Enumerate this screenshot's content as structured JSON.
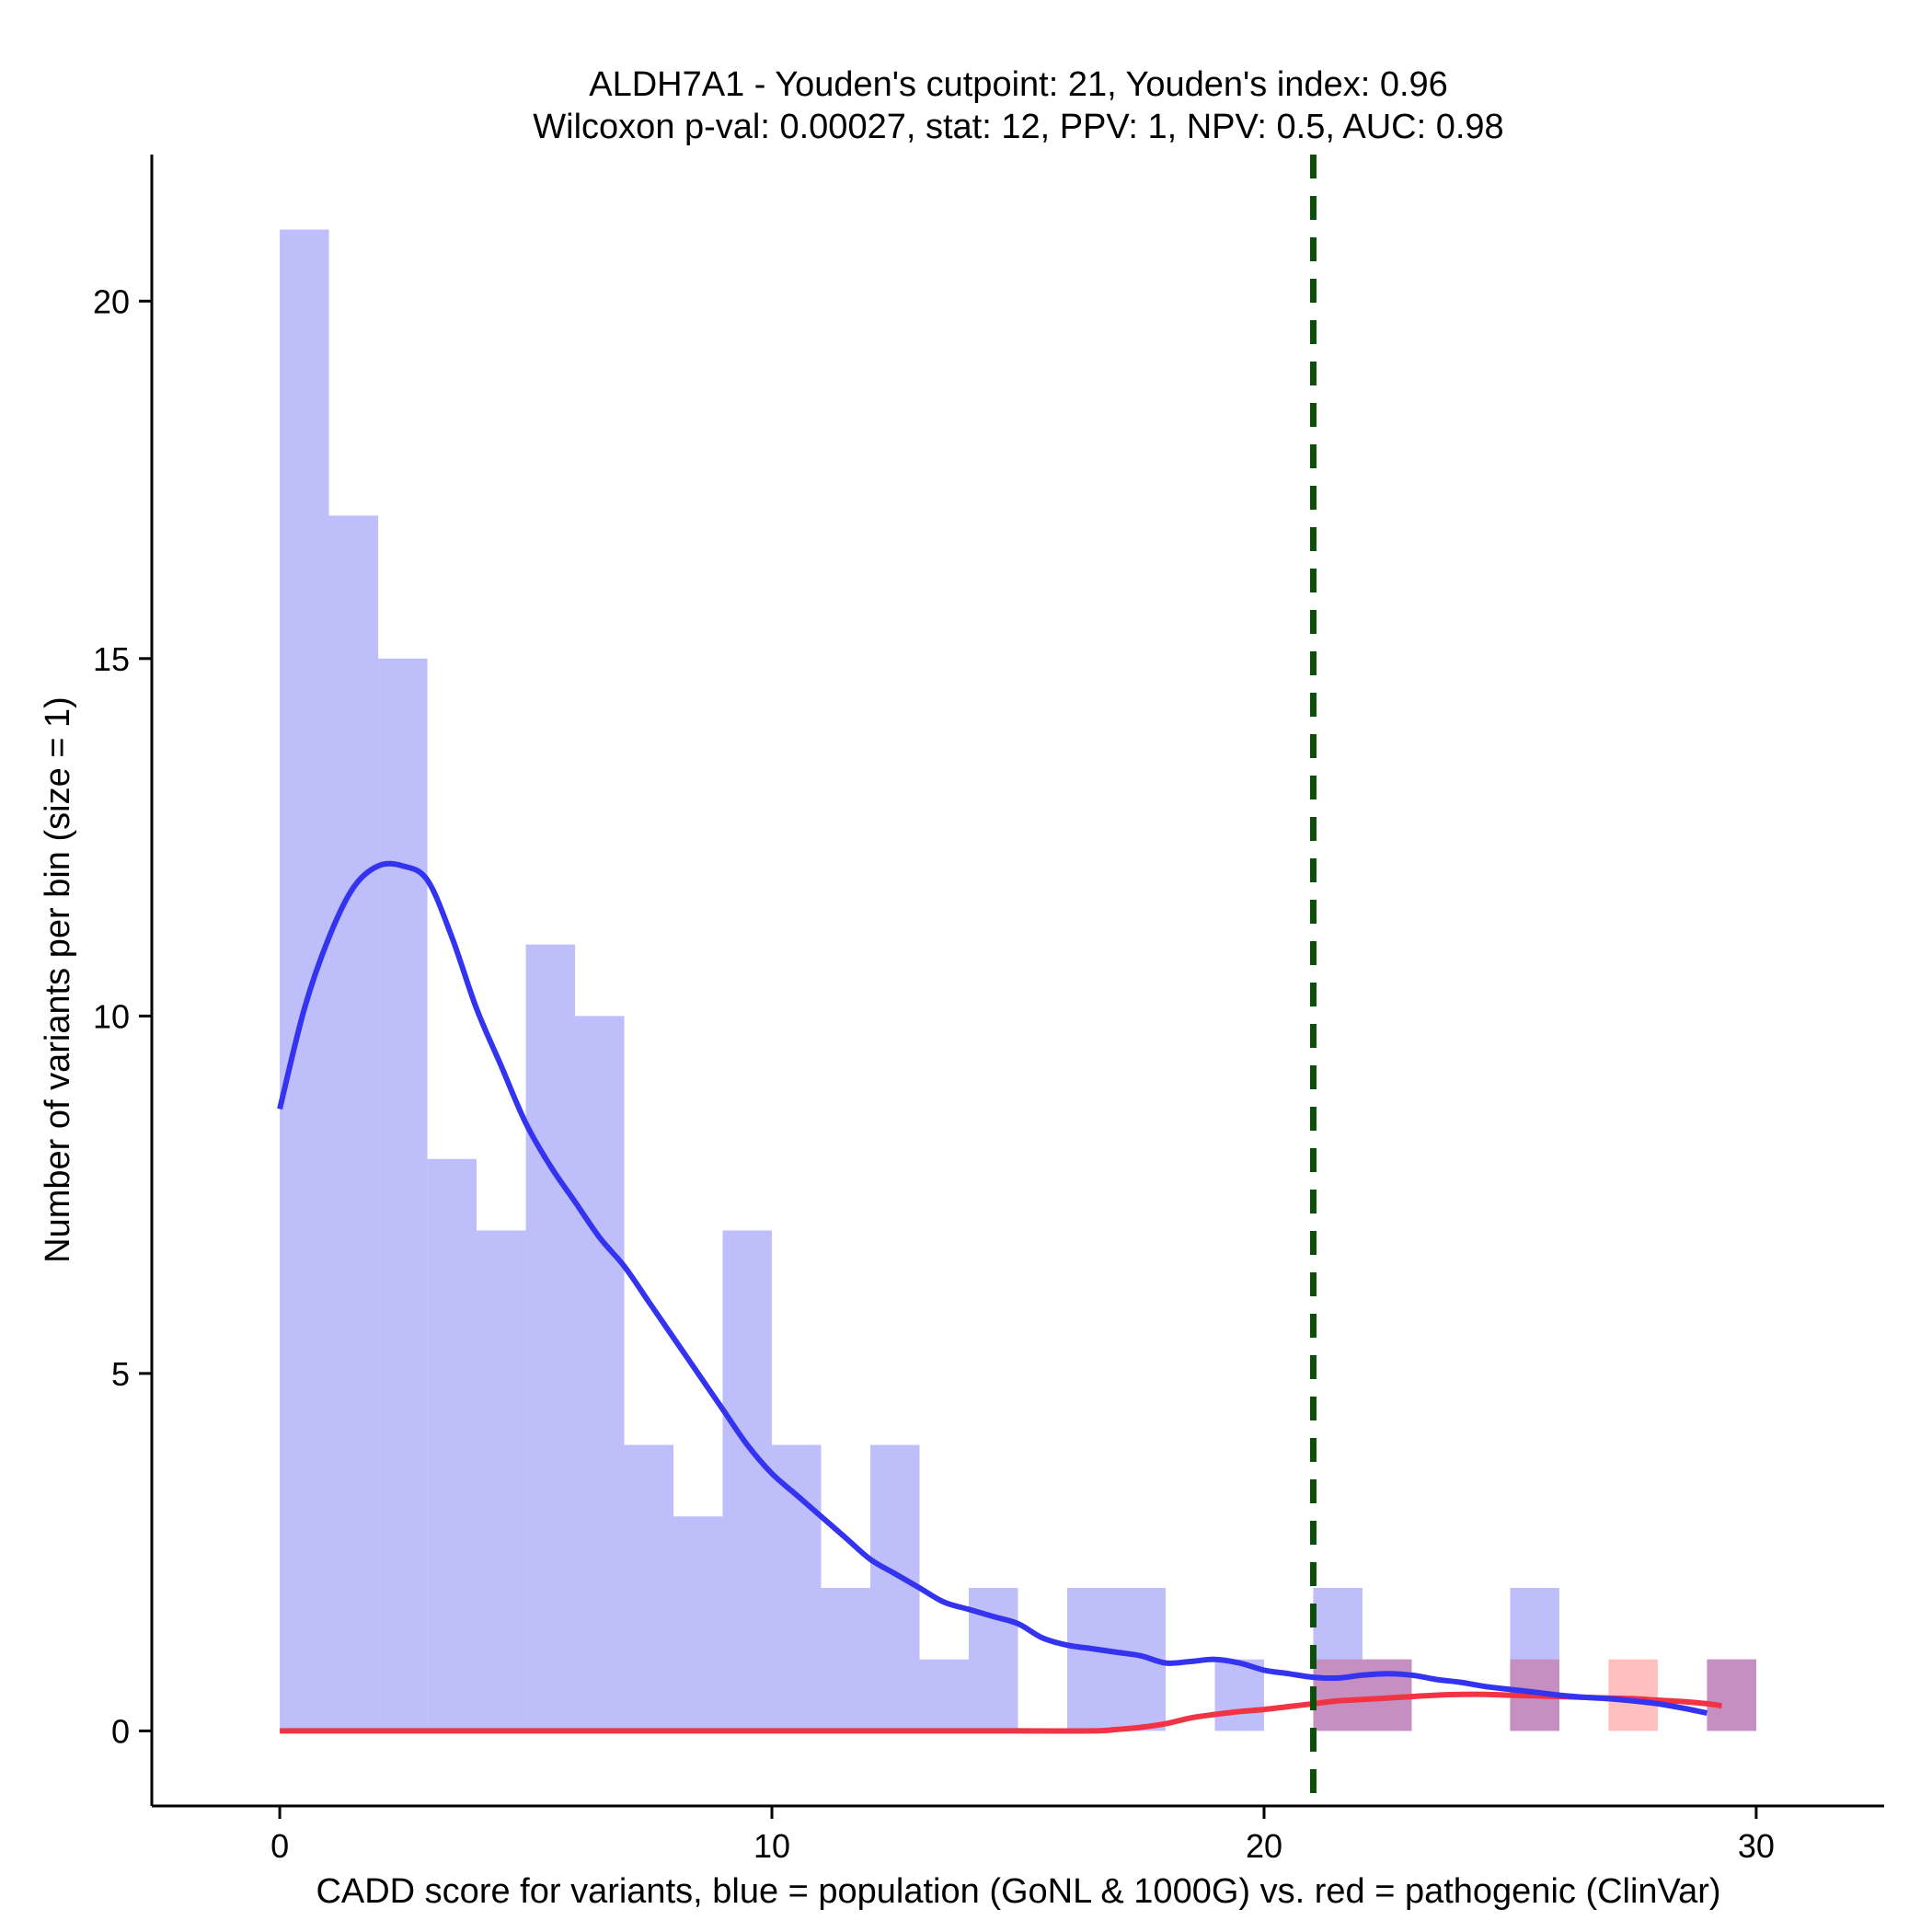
{
  "chart_data": {
    "type": "bar",
    "title_line1": "ALDH7A1 - Youden's cutpoint: 21, Youden's index: 0.96",
    "title_line2": "Wilcoxon p-val: 0.00027, stat: 12, PPV: 1, NPV: 0.5, AUC: 0.98",
    "xlabel": "CADD score for variants, blue = population (GoNL & 1000G) vs. red = pathogenic (ClinVar)",
    "ylabel": "Number of variants per bin (size = 1)",
    "xlim": [
      -2.6,
      32.6
    ],
    "ylim": [
      -1.05,
      22.05
    ],
    "xticks": [
      0,
      10,
      20,
      30
    ],
    "yticks": [
      0,
      5,
      10,
      15,
      20
    ],
    "bin_size": 1,
    "cutpoint": 21,
    "colors": {
      "population_bar": "#bebefb",
      "pathogenic_bar": "#ffbfbf",
      "overlap_bar": "#c68fc2",
      "population_density": "#3333f0",
      "pathogenic_density": "#f23344",
      "cutpoint_line": "#0b4f0b"
    },
    "series": [
      {
        "name": "population (GoNL & 1000G)",
        "bins": [
          [
            0,
            21
          ],
          [
            1,
            17
          ],
          [
            2,
            15
          ],
          [
            3,
            8
          ],
          [
            4,
            7
          ],
          [
            5,
            11
          ],
          [
            6,
            10
          ],
          [
            7,
            4
          ],
          [
            8,
            3
          ],
          [
            9,
            7
          ],
          [
            10,
            4
          ],
          [
            11,
            2
          ],
          [
            12,
            4
          ],
          [
            13,
            1
          ],
          [
            14,
            2
          ],
          [
            16,
            2
          ],
          [
            17,
            2
          ],
          [
            19,
            1
          ],
          [
            21,
            2
          ],
          [
            22,
            1
          ],
          [
            25,
            2
          ],
          [
            29,
            1
          ]
        ],
        "density": [
          [
            0,
            8.7
          ],
          [
            0.5,
            10.1
          ],
          [
            1,
            11.1
          ],
          [
            1.5,
            11.8
          ],
          [
            2,
            12.1
          ],
          [
            2.5,
            12.1
          ],
          [
            3,
            11.9
          ],
          [
            3.5,
            11.1
          ],
          [
            4,
            10.1
          ],
          [
            4.5,
            9.3
          ],
          [
            5,
            8.5
          ],
          [
            5.5,
            7.9
          ],
          [
            6,
            7.4
          ],
          [
            6.5,
            6.9
          ],
          [
            7,
            6.5
          ],
          [
            7.5,
            6.0
          ],
          [
            8,
            5.5
          ],
          [
            8.5,
            5.0
          ],
          [
            9,
            4.5
          ],
          [
            9.5,
            4.0
          ],
          [
            10,
            3.6
          ],
          [
            10.5,
            3.3
          ],
          [
            11,
            3.0
          ],
          [
            11.5,
            2.7
          ],
          [
            12,
            2.4
          ],
          [
            12.5,
            2.2
          ],
          [
            13,
            2.0
          ],
          [
            13.5,
            1.8
          ],
          [
            14,
            1.7
          ],
          [
            14.5,
            1.6
          ],
          [
            15,
            1.5
          ],
          [
            15.5,
            1.3
          ],
          [
            16,
            1.2
          ],
          [
            16.5,
            1.15
          ],
          [
            17,
            1.1
          ],
          [
            17.5,
            1.05
          ],
          [
            18,
            0.95
          ],
          [
            18.5,
            0.97
          ],
          [
            19,
            1.0
          ],
          [
            19.5,
            0.95
          ],
          [
            20,
            0.85
          ],
          [
            20.5,
            0.8
          ],
          [
            21,
            0.75
          ],
          [
            21.5,
            0.74
          ],
          [
            22,
            0.78
          ],
          [
            22.5,
            0.8
          ],
          [
            23,
            0.78
          ],
          [
            23.5,
            0.72
          ],
          [
            24,
            0.68
          ],
          [
            24.5,
            0.62
          ],
          [
            25,
            0.58
          ],
          [
            25.5,
            0.54
          ],
          [
            26,
            0.5
          ],
          [
            26.5,
            0.47
          ],
          [
            27,
            0.45
          ],
          [
            27.5,
            0.42
          ],
          [
            28,
            0.38
          ],
          [
            28.5,
            0.32
          ],
          [
            29,
            0.25
          ]
        ]
      },
      {
        "name": "pathogenic (ClinVar)",
        "bins": [
          [
            21,
            1
          ],
          [
            22,
            1
          ],
          [
            25,
            1
          ],
          [
            27,
            1
          ],
          [
            29,
            1
          ]
        ],
        "density": [
          [
            0,
            0
          ],
          [
            5,
            0
          ],
          [
            10,
            0
          ],
          [
            15,
            0
          ],
          [
            16.5,
            0
          ],
          [
            17,
            0.02
          ],
          [
            17.5,
            0.05
          ],
          [
            18,
            0.1
          ],
          [
            18.5,
            0.18
          ],
          [
            19,
            0.23
          ],
          [
            19.5,
            0.27
          ],
          [
            20,
            0.3
          ],
          [
            20.5,
            0.34
          ],
          [
            21,
            0.38
          ],
          [
            21.5,
            0.42
          ],
          [
            22,
            0.44
          ],
          [
            22.5,
            0.46
          ],
          [
            23,
            0.48
          ],
          [
            23.5,
            0.5
          ],
          [
            24,
            0.51
          ],
          [
            24.5,
            0.51
          ],
          [
            25,
            0.5
          ],
          [
            25.5,
            0.49
          ],
          [
            26,
            0.48
          ],
          [
            26.5,
            0.47
          ],
          [
            27,
            0.46
          ],
          [
            27.5,
            0.45
          ],
          [
            28,
            0.43
          ],
          [
            28.5,
            0.41
          ],
          [
            29,
            0.38
          ],
          [
            29.3,
            0.35
          ]
        ]
      }
    ]
  }
}
